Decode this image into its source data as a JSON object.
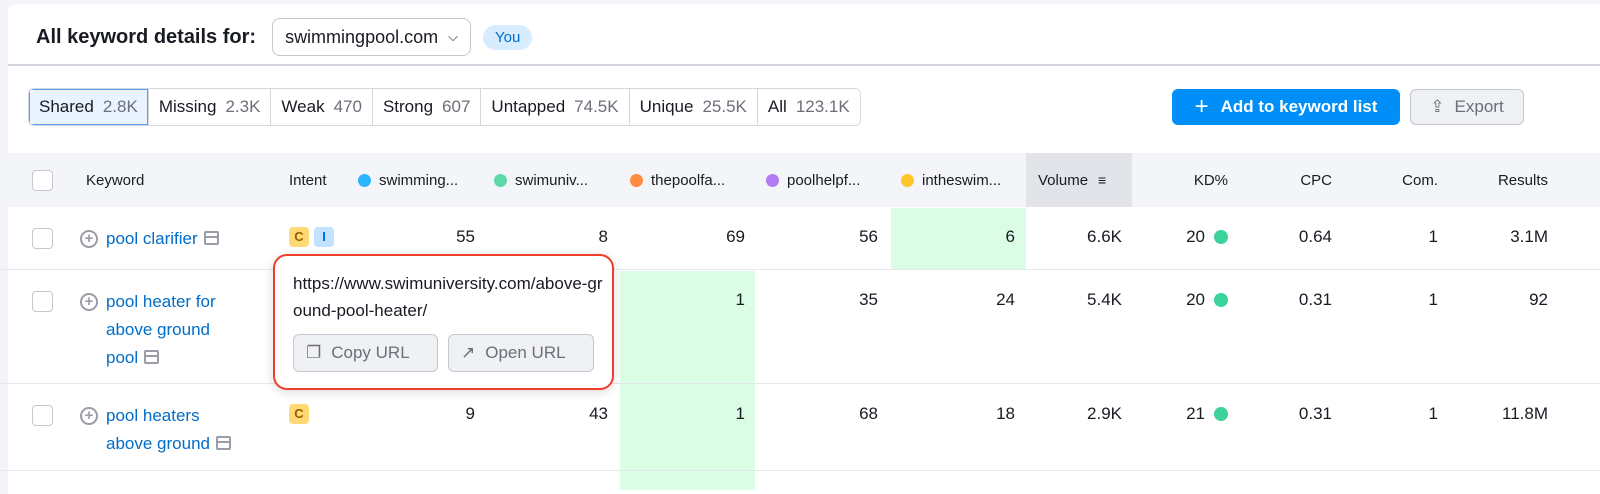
{
  "header": {
    "title": "All keyword details for:",
    "domain": "swimmingpool.com",
    "you_badge": "You"
  },
  "tabs": [
    {
      "label": "Shared",
      "count": "2.8K",
      "active": true
    },
    {
      "label": "Missing",
      "count": "2.3K"
    },
    {
      "label": "Weak",
      "count": "470"
    },
    {
      "label": "Strong",
      "count": "607"
    },
    {
      "label": "Untapped",
      "count": "74.5K"
    },
    {
      "label": "Unique",
      "count": "25.5K"
    },
    {
      "label": "All",
      "count": "123.1K"
    }
  ],
  "actions": {
    "add": "Add to keyword list",
    "export": "Export"
  },
  "columns": {
    "keyword": "Keyword",
    "intent": "Intent",
    "domains": [
      {
        "name": "swimming...",
        "color": "#2bb4ff"
      },
      {
        "name": "swimuniv...",
        "color": "#5ed8a8"
      },
      {
        "name": "thepoolfa...",
        "color": "#ff8c43"
      },
      {
        "name": "poolhelpf...",
        "color": "#b27cf5"
      },
      {
        "name": "intheswim...",
        "color": "#ffc72c"
      }
    ],
    "volume": "Volume",
    "kd": "KD%",
    "cpc": "CPC",
    "com": "Com.",
    "results": "Results"
  },
  "rows": [
    {
      "keyword": "pool clarifier",
      "intent": [
        "C",
        "I"
      ],
      "d": [
        "55",
        "8",
        "69",
        "56",
        "6"
      ],
      "volume": "6.6K",
      "kd": "20",
      "cpc": "0.64",
      "com": "1",
      "results": "3.1M"
    },
    {
      "keyword": "pool heater for above ground pool",
      "intent": [],
      "d": [
        "",
        "",
        "1",
        "35",
        "24"
      ],
      "volume": "5.4K",
      "kd": "20",
      "cpc": "0.31",
      "com": "1",
      "results": "92"
    },
    {
      "keyword": "pool heaters above ground",
      "intent": [
        "C"
      ],
      "d": [
        "9",
        "43",
        "1",
        "68",
        "18"
      ],
      "volume": "2.9K",
      "kd": "21",
      "cpc": "0.31",
      "com": "1",
      "results": "11.8M"
    }
  ],
  "tooltip": {
    "url": "https://www.swimuniversity.com/above-ground-pool-heater/",
    "copy": "Copy URL",
    "open": "Open URL"
  }
}
